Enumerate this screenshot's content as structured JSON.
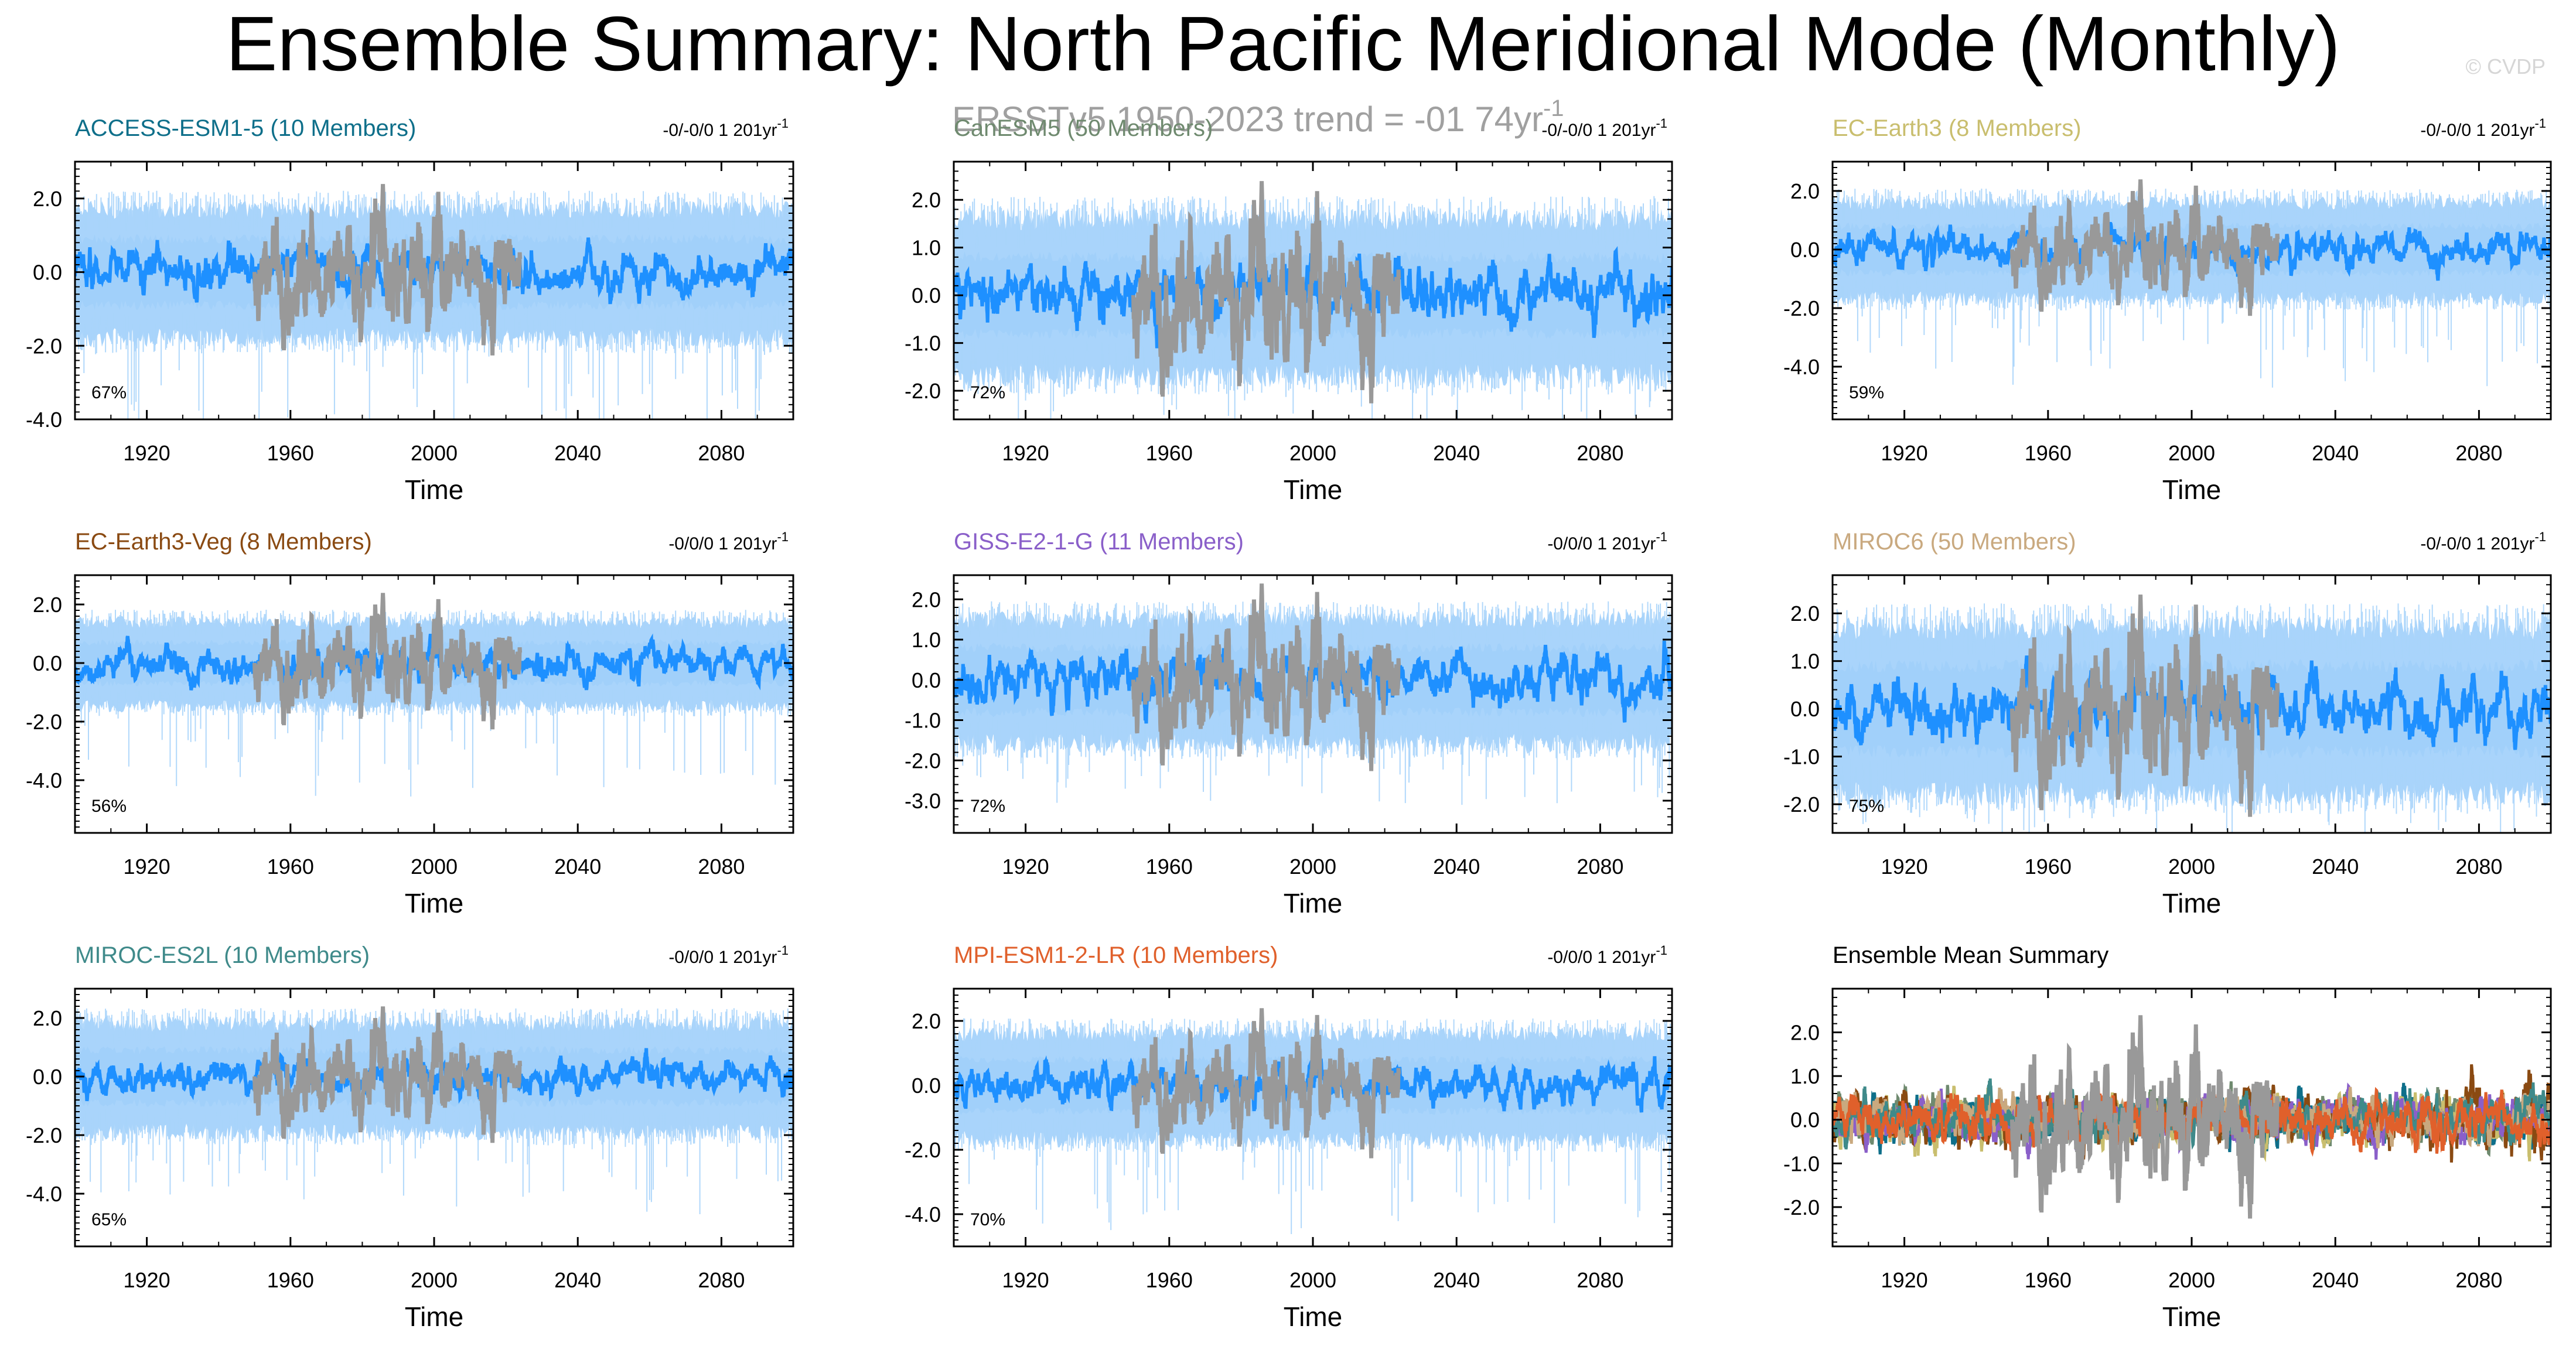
{
  "figure": {
    "title": "Ensemble Summary: North Pacific Meridional Mode (Monthly)",
    "subtitle": "ERSSTv5 1950-2023 trend = -01 74yr",
    "subtitle_sup": "-1",
    "copyright": "© CVDP",
    "xlabel": "Time"
  },
  "colors": {
    "obs": "#999999",
    "ens_mean": "#1e90ff",
    "spread_inner": "#5aabf5",
    "spread_outer": "#a9d4fb"
  },
  "chart_data": [
    {
      "type": "line",
      "title": "ACCESS-ESM1-5 (10 Members)",
      "title_color": "#0e6f8a",
      "trend_text": "-0/-0/0 1 201yr",
      "trend_sup": "-1",
      "percent": "67%",
      "ylim": [
        -4.0,
        3.0
      ],
      "yticks": [
        -4.0,
        -2.0,
        0.0,
        2.0
      ],
      "ytick_labels": [
        "-4.0",
        "-2.0",
        "0.0",
        "2.0"
      ],
      "xlim": [
        1900,
        2100
      ],
      "xticks": [
        1920,
        1960,
        2000,
        2040,
        2080
      ],
      "xtick_labels": [
        "1920",
        "1960",
        "2000",
        "2040",
        "2080"
      ],
      "spread_inner": 0.9,
      "spread_outer": 1.7,
      "low_tail": 2.8
    },
    {
      "type": "line",
      "title": "CanESM5 (50 Members)",
      "title_color": "#6f8a6f",
      "trend_text": "-0/-0/0 1 201yr",
      "trend_sup": "-1",
      "percent": "72%",
      "ylim": [
        -2.6,
        2.8
      ],
      "yticks": [
        -2.0,
        -1.0,
        0.0,
        1.0,
        2.0
      ],
      "ytick_labels": [
        "-2.0",
        "-1.0",
        "0.0",
        "1.0",
        "2.0"
      ],
      "xlim": [
        1900,
        2100
      ],
      "xticks": [
        1920,
        1960,
        2000,
        2040,
        2080
      ],
      "xtick_labels": [
        "1920",
        "1960",
        "2000",
        "2040",
        "2080"
      ],
      "spread_inner": 0.8,
      "spread_outer": 1.6,
      "low_tail": 1.0
    },
    {
      "type": "line",
      "title": "EC-Earth3 (8 Members)",
      "title_color": "#c9be6e",
      "trend_text": "-0/-0/0 1 201yr",
      "trend_sup": "-1",
      "percent": "59%",
      "ylim": [
        -5.8,
        3.0
      ],
      "yticks": [
        -4.0,
        -2.0,
        0.0,
        2.0
      ],
      "ytick_labels": [
        "-4.0",
        "-2.0",
        "0.0",
        "2.0"
      ],
      "xlim": [
        1900,
        2100
      ],
      "xticks": [
        1920,
        1960,
        2000,
        2040,
        2080
      ],
      "xtick_labels": [
        "1920",
        "1960",
        "2000",
        "2040",
        "2080"
      ],
      "spread_inner": 0.8,
      "spread_outer": 1.6,
      "low_tail": 2.8
    },
    {
      "type": "line",
      "title": "EC-Earth3-Veg (8 Members)",
      "title_color": "#8a4a12",
      "trend_text": "-0/0/0 1 201yr",
      "trend_sup": "-1",
      "percent": "56%",
      "ylim": [
        -5.8,
        3.0
      ],
      "yticks": [
        -4.0,
        -2.0,
        0.0,
        2.0
      ],
      "ytick_labels": [
        "-4.0",
        "-2.0",
        "0.0",
        "2.0"
      ],
      "xlim": [
        1900,
        2100
      ],
      "xticks": [
        1920,
        1960,
        2000,
        2040,
        2080
      ],
      "xtick_labels": [
        "1920",
        "1960",
        "2000",
        "2040",
        "2080"
      ],
      "spread_inner": 0.7,
      "spread_outer": 1.4,
      "low_tail": 3.0
    },
    {
      "type": "line",
      "title": "GISS-E2-1-G (11 Members)",
      "title_color": "#8a5fc9",
      "trend_text": "-0/0/0 1 201yr",
      "trend_sup": "-1",
      "percent": "72%",
      "ylim": [
        -3.8,
        2.6
      ],
      "yticks": [
        -3.0,
        -2.0,
        -1.0,
        0.0,
        1.0,
        2.0
      ],
      "ytick_labels": [
        "-3.0",
        "-2.0",
        "-1.0",
        "0.0",
        "1.0",
        "2.0"
      ],
      "xlim": [
        1900,
        2100
      ],
      "xticks": [
        1920,
        1960,
        2000,
        2040,
        2080
      ],
      "xtick_labels": [
        "1920",
        "1960",
        "2000",
        "2040",
        "2080"
      ],
      "spread_inner": 0.8,
      "spread_outer": 1.5,
      "low_tail": 1.5
    },
    {
      "type": "line",
      "title": "MIROC6 (50 Members)",
      "title_color": "#c9a97f",
      "trend_text": "-0/-0/0 1 201yr",
      "trend_sup": "-1",
      "percent": "75%",
      "ylim": [
        -2.6,
        2.8
      ],
      "yticks": [
        -2.0,
        -1.0,
        0.0,
        1.0,
        2.0
      ],
      "ytick_labels": [
        "-2.0",
        "-1.0",
        "0.0",
        "1.0",
        "2.0"
      ],
      "xlim": [
        1900,
        2100
      ],
      "xticks": [
        1920,
        1960,
        2000,
        2040,
        2080
      ],
      "xtick_labels": [
        "1920",
        "1960",
        "2000",
        "2040",
        "2080"
      ],
      "spread_inner": 0.9,
      "spread_outer": 1.7,
      "low_tail": 0.7
    },
    {
      "type": "line",
      "title": "MIROC-ES2L (10 Members)",
      "title_color": "#3f8a8a",
      "trend_text": "-0/0/0 1 201yr",
      "trend_sup": "-1",
      "percent": "65%",
      "ylim": [
        -5.8,
        3.0
      ],
      "yticks": [
        -4.0,
        -2.0,
        0.0,
        2.0
      ],
      "ytick_labels": [
        "-4.0",
        "-2.0",
        "0.0",
        "2.0"
      ],
      "xlim": [
        1900,
        2100
      ],
      "xticks": [
        1920,
        1960,
        2000,
        2040,
        2080
      ],
      "xtick_labels": [
        "1920",
        "1960",
        "2000",
        "2040",
        "2080"
      ],
      "spread_inner": 0.9,
      "spread_outer": 1.8,
      "low_tail": 2.8
    },
    {
      "type": "line",
      "title": "MPI-ESM1-2-LR (10 Members)",
      "title_color": "#e0602b",
      "trend_text": "-0/0/0 1 201yr",
      "trend_sup": "-1",
      "percent": "70%",
      "ylim": [
        -5.0,
        3.0
      ],
      "yticks": [
        -4.0,
        -2.0,
        0.0,
        2.0
      ],
      "ytick_labels": [
        "-4.0",
        "-2.0",
        "0.0",
        "2.0"
      ],
      "xlim": [
        1900,
        2100
      ],
      "xticks": [
        1920,
        1960,
        2000,
        2040,
        2080
      ],
      "xtick_labels": [
        "1920",
        "1960",
        "2000",
        "2040",
        "2080"
      ],
      "spread_inner": 0.8,
      "spread_outer": 1.6,
      "low_tail": 2.6
    },
    {
      "type": "line",
      "title": "Ensemble Mean Summary",
      "title_color": "#000000",
      "trend_text": "",
      "trend_sup": "",
      "percent": "",
      "ylim": [
        -2.9,
        3.0
      ],
      "yticks": [
        -2.0,
        -1.0,
        0.0,
        1.0,
        2.0
      ],
      "ytick_labels": [
        "-2.0",
        "-1.0",
        "0.0",
        "1.0",
        "2.0"
      ],
      "xlim": [
        1900,
        2100
      ],
      "xticks": [
        1920,
        1960,
        2000,
        2040,
        2080
      ],
      "xtick_labels": [
        "1920",
        "1960",
        "2000",
        "2040",
        "2080"
      ],
      "summary": true,
      "series_colors": [
        "#0e6f8a",
        "#6f8a6f",
        "#c9be6e",
        "#8a4a12",
        "#8a5fc9",
        "#c9a97f",
        "#3f8a8a",
        "#e0602b"
      ]
    }
  ]
}
